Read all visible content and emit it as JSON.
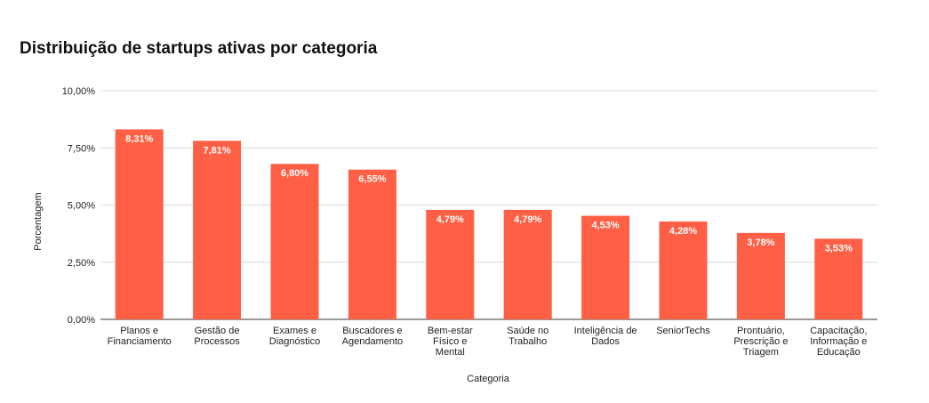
{
  "chart_data": {
    "type": "bar",
    "title": "Distribuição de startups ativas por categoria",
    "xlabel": "Categoria",
    "ylabel": "Porcentagem",
    "ylim": [
      0,
      10
    ],
    "yticks": [
      "0,00%",
      "2,50%",
      "5,00%",
      "7,50%",
      "10,00%"
    ],
    "categories": [
      [
        "Planos e",
        "Financiamento"
      ],
      [
        "Gestão de",
        "Processos"
      ],
      [
        "Exames e",
        "Diagnóstico"
      ],
      [
        "Buscadores e",
        "Agendamento"
      ],
      [
        "Bem-estar",
        "Físico e",
        "Mental"
      ],
      [
        "Saúde no",
        "Trabalho"
      ],
      [
        "Inteligência de",
        "Dados"
      ],
      [
        "SeniorTechs"
      ],
      [
        "Prontuário,",
        "Prescrição e",
        "Triagem"
      ],
      [
        "Capacitação,",
        "Informação e",
        "Educação"
      ]
    ],
    "values": [
      8.31,
      7.81,
      6.8,
      6.55,
      4.79,
      4.79,
      4.53,
      4.28,
      3.78,
      3.53
    ],
    "data_labels": [
      "8,31%",
      "7,81%",
      "6,80%",
      "6,55%",
      "4,79%",
      "4,79%",
      "4,53%",
      "4,28%",
      "3,78%",
      "3,53%"
    ],
    "bar_color": "#ff5f45",
    "grid": true,
    "legend": "none"
  }
}
